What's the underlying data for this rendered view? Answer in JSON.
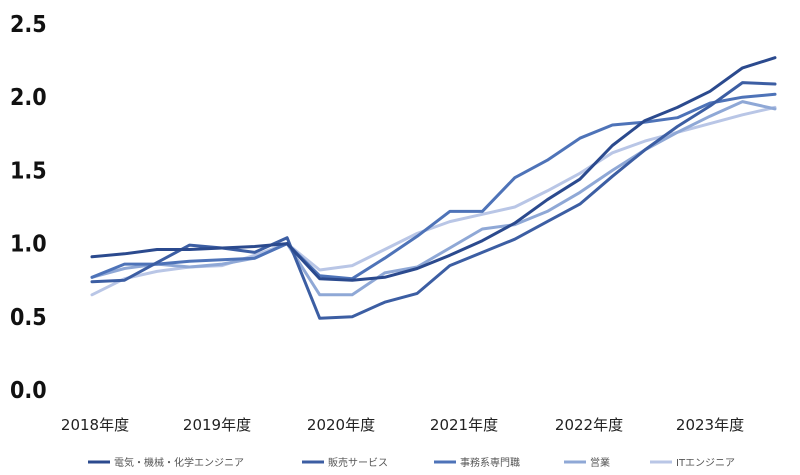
{
  "chart_data": {
    "type": "line",
    "title": "",
    "xlabel": "",
    "ylabel": "",
    "ylim": [
      0,
      2.5
    ],
    "y_ticks": [
      "0.0",
      "0.5",
      "1.0",
      "1.5",
      "2.0",
      "2.5"
    ],
    "x_tick_labels": [
      "2018年度",
      "2019年度",
      "2020年度",
      "2021年度",
      "2022年度",
      "2023年度"
    ],
    "grid": false,
    "legend_position": "bottom",
    "series": [
      {
        "name": "電気・機械・化学エンジニア",
        "color": "#2b4a8e",
        "values": [
          0.91,
          0.93,
          0.96,
          0.96,
          0.97,
          0.98,
          1.0,
          0.76,
          0.75,
          0.77,
          0.83,
          0.92,
          1.02,
          1.14,
          1.3,
          1.44,
          1.67,
          1.84,
          1.93,
          2.04,
          2.2,
          2.27
        ]
      },
      {
        "name": "販売サービス",
        "color": "#3c5ea3",
        "values": [
          0.74,
          0.75,
          0.87,
          0.99,
          0.97,
          0.94,
          1.04,
          0.49,
          0.5,
          0.6,
          0.66,
          0.85,
          0.94,
          1.03,
          1.15,
          1.27,
          1.46,
          1.64,
          1.8,
          1.94,
          2.1,
          2.09
        ]
      },
      {
        "name": "事務系専門職",
        "color": "#4e73b8",
        "values": [
          0.77,
          0.86,
          0.86,
          0.88,
          0.89,
          0.9,
          1.0,
          0.78,
          0.76,
          0.9,
          1.05,
          1.22,
          1.22,
          1.45,
          1.57,
          1.72,
          1.81,
          1.83,
          1.86,
          1.96,
          2.0,
          2.02
        ]
      },
      {
        "name": "営業",
        "color": "#8fa8d6",
        "values": [
          0.77,
          0.83,
          0.86,
          0.84,
          0.86,
          0.9,
          1.0,
          0.65,
          0.65,
          0.8,
          0.84,
          0.97,
          1.1,
          1.13,
          1.22,
          1.35,
          1.5,
          1.64,
          1.76,
          1.87,
          1.97,
          1.92
        ]
      },
      {
        "name": "ITエンジニア",
        "color": "#b9c6e6",
        "values": [
          0.65,
          0.76,
          0.81,
          0.84,
          0.85,
          0.92,
          1.0,
          0.82,
          0.85,
          0.96,
          1.07,
          1.15,
          1.2,
          1.25,
          1.36,
          1.48,
          1.62,
          1.7,
          1.76,
          1.82,
          1.88,
          1.93
        ]
      }
    ]
  }
}
